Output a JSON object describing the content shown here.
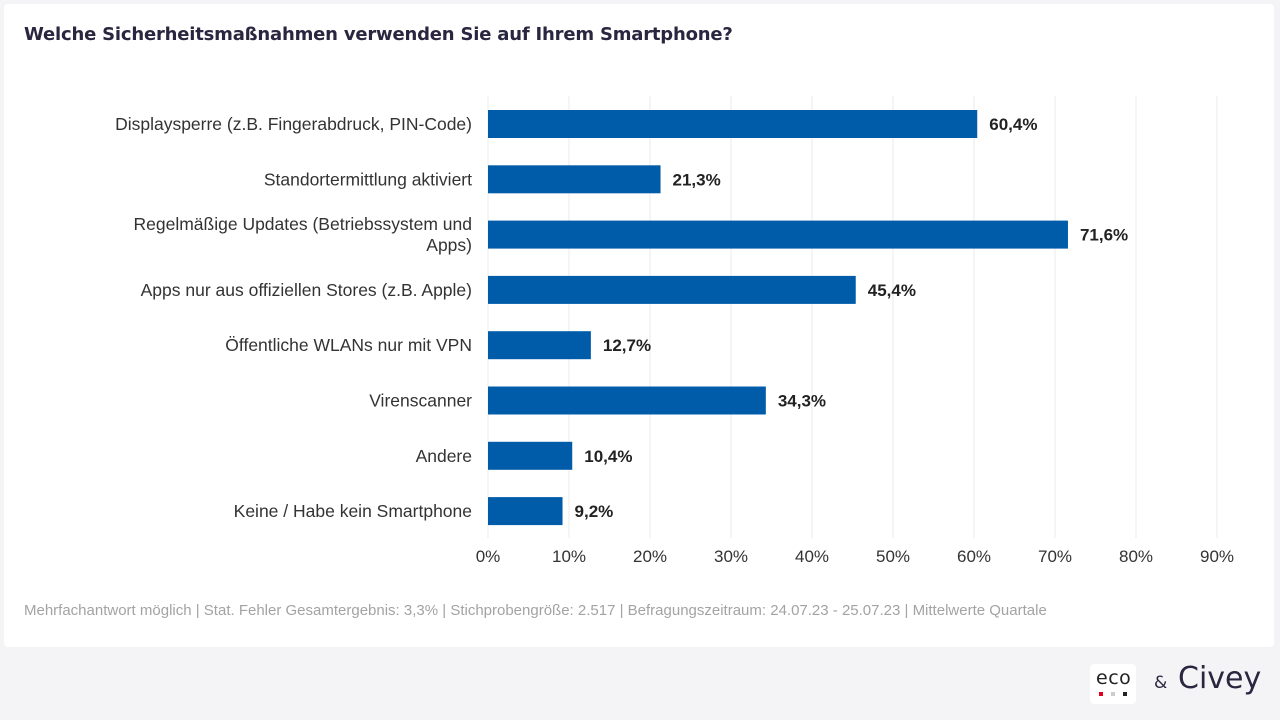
{
  "footnote": "Mehrfachantwort möglich | Stat. Fehler Gesamtergebnis: 3,3% | Stichprobengröße: 2.517 | Befragungszeitraum: 24.07.23 - 25.07.23 | Mittelwerte Quartale",
  "logos": {
    "eco": "eco",
    "ampersand": "&",
    "civey": "Civey"
  },
  "colors": {
    "bar": "#005ca9",
    "grid": "#ebebeb",
    "title": "#2a2640",
    "eco_dots": [
      "#e3001b",
      "#cccccc",
      "#222222"
    ]
  },
  "chart_data": {
    "type": "bar",
    "orientation": "horizontal",
    "title": "Welche Sicherheitsmaßnahmen verwenden Sie auf Ihrem Smartphone?",
    "xlabel": "",
    "ylabel": "",
    "categories": [
      [
        "Displaysperre (z.B. Fingerabdruck, PIN-Code)"
      ],
      [
        "Standortermittlung aktiviert"
      ],
      [
        "Regelmäßige Updates (Betriebssystem und",
        "Apps)"
      ],
      [
        "Apps nur aus offiziellen Stores (z.B. Apple)"
      ],
      [
        "Öffentliche WLANs nur mit VPN"
      ],
      [
        "Virenscanner"
      ],
      [
        "Andere"
      ],
      [
        "Keine / Habe kein Smartphone"
      ]
    ],
    "values": [
      60.4,
      21.3,
      71.6,
      45.4,
      12.7,
      34.3,
      10.4,
      9.2
    ],
    "value_labels": [
      "60,4%",
      "21,3%",
      "71,6%",
      "45,4%",
      "12,7%",
      "34,3%",
      "10,4%",
      "9,2%"
    ],
    "xlim": [
      0,
      90
    ],
    "xticks": [
      0,
      10,
      20,
      30,
      40,
      50,
      60,
      70,
      80,
      90
    ],
    "xtick_labels": [
      "0%",
      "10%",
      "20%",
      "30%",
      "40%",
      "50%",
      "60%",
      "70%",
      "80%",
      "90%"
    ],
    "grid": true,
    "legend": "none"
  }
}
